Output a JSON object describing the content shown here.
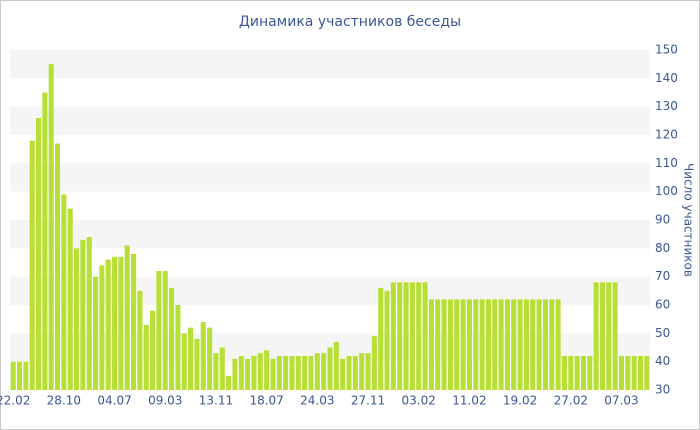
{
  "chart_data": {
    "type": "bar",
    "title": "Динамика участников беседы",
    "y_axis_label": "Число участников",
    "categories": [
      "22.02",
      null,
      null,
      null,
      null,
      null,
      null,
      null,
      "28.10",
      null,
      null,
      null,
      null,
      null,
      null,
      null,
      "04.07",
      null,
      null,
      null,
      null,
      null,
      null,
      null,
      "09.03",
      null,
      null,
      null,
      null,
      null,
      null,
      null,
      "13.11",
      null,
      null,
      null,
      null,
      null,
      null,
      null,
      "18.07",
      null,
      null,
      null,
      null,
      null,
      null,
      null,
      "24.03",
      null,
      null,
      null,
      null,
      null,
      null,
      null,
      "27.11",
      null,
      null,
      null,
      null,
      null,
      null,
      null,
      "03.02",
      null,
      null,
      null,
      null,
      null,
      null,
      null,
      "11.02",
      null,
      null,
      null,
      null,
      null,
      null,
      null,
      "19.02",
      null,
      null,
      null,
      null,
      null,
      null,
      null,
      "27.02",
      null,
      null,
      null,
      null,
      null,
      null,
      null,
      "07.03",
      null,
      null,
      null,
      null
    ],
    "values": [
      40,
      40,
      40,
      118,
      126,
      135,
      145,
      117,
      99,
      94,
      80,
      83,
      84,
      70,
      74,
      76,
      77,
      77,
      81,
      78,
      65,
      53,
      58,
      72,
      72,
      66,
      60,
      50,
      52,
      48,
      54,
      52,
      43,
      45,
      35,
      41,
      42,
      41,
      42,
      43,
      44,
      41,
      42,
      42,
      42,
      42,
      42,
      42,
      43,
      43,
      45,
      47,
      41,
      42,
      42,
      43,
      43,
      49,
      66,
      65,
      68,
      68,
      68,
      68,
      68,
      68,
      62,
      62,
      62,
      62,
      62,
      62,
      62,
      62,
      62,
      62,
      62,
      62,
      62,
      62,
      62,
      62,
      62,
      62,
      62,
      62,
      62,
      42,
      42,
      42,
      42,
      42,
      68,
      68,
      68,
      68,
      42,
      42,
      42,
      42,
      42
    ],
    "color": "#b8df36",
    "ylim": [
      30,
      150
    ],
    "yticks": [
      30,
      40,
      50,
      60,
      70,
      80,
      90,
      100,
      110,
      120,
      130,
      140,
      150
    ],
    "y_axis_side": "right",
    "grid": true
  }
}
